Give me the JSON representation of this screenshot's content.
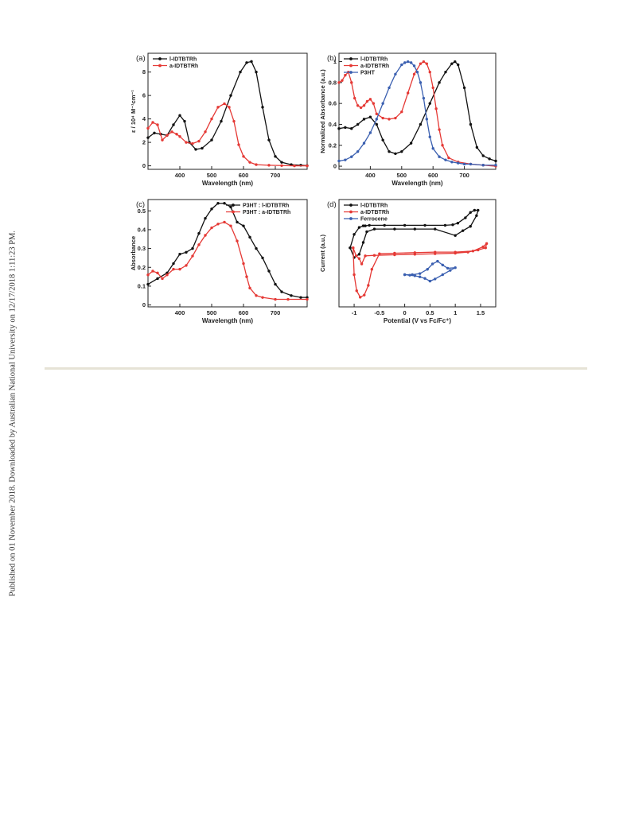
{
  "side_note": "Published on 01 November 2018. Downloaded by Australian National University on 12/17/2018 1:11:23 PM.",
  "colors": {
    "black": "#111111",
    "red": "#e53935",
    "blue": "#3a5fb0",
    "divider": "#e6e3d6"
  },
  "chart_data": [
    {
      "panel": "(a)",
      "type": "line",
      "xlabel": "Wavelength (nm)",
      "ylabel": "ε / 10⁴ M⁻¹cm⁻¹",
      "xlim": [
        300,
        800
      ],
      "ylim": [
        -0.3,
        9.6
      ],
      "xticks": [
        400,
        500,
        600,
        700
      ],
      "yticks": [
        0,
        2,
        4,
        6,
        8
      ],
      "legend_position": "top-left",
      "series": [
        {
          "name": "l-IDTBTRh",
          "color": "#111111",
          "x": [
            300,
            320,
            340,
            360,
            380,
            400,
            415,
            430,
            450,
            470,
            500,
            530,
            560,
            590,
            610,
            625,
            640,
            660,
            680,
            700,
            720,
            750,
            780,
            800
          ],
          "y": [
            2.4,
            2.8,
            2.7,
            2.6,
            3.5,
            4.3,
            3.8,
            2.0,
            1.4,
            1.5,
            2.2,
            3.8,
            6.0,
            8.0,
            8.8,
            8.9,
            8.0,
            5.0,
            2.2,
            0.8,
            0.3,
            0.1,
            0.05,
            0.02
          ]
        },
        {
          "name": "a-IDTBTRh",
          "color": "#e53935",
          "x": [
            300,
            315,
            330,
            345,
            360,
            375,
            390,
            400,
            420,
            440,
            460,
            480,
            500,
            520,
            540,
            555,
            570,
            585,
            600,
            620,
            640,
            680,
            720,
            760,
            800
          ],
          "y": [
            3.2,
            3.7,
            3.5,
            2.2,
            2.6,
            2.9,
            2.7,
            2.5,
            2.0,
            1.9,
            2.1,
            2.9,
            4.0,
            5.0,
            5.3,
            5.0,
            3.8,
            1.8,
            0.8,
            0.3,
            0.1,
            0.05,
            0.02,
            0.0,
            0.0
          ]
        }
      ]
    },
    {
      "panel": "(b)",
      "type": "line",
      "xlabel": "Wavelength (nm)",
      "ylabel": "Normalized Absorbance (a.u.)",
      "xlim": [
        300,
        800
      ],
      "ylim": [
        -0.03,
        1.08
      ],
      "xticks": [
        400,
        500,
        600,
        700
      ],
      "yticks": [
        0.0,
        0.2,
        0.4,
        0.6,
        0.8,
        1.0
      ],
      "legend_position": "top-left",
      "series": [
        {
          "name": "l-IDTBTRh",
          "color": "#111111",
          "x": [
            300,
            320,
            340,
            360,
            380,
            400,
            420,
            440,
            460,
            480,
            500,
            530,
            560,
            590,
            620,
            640,
            660,
            670,
            680,
            700,
            720,
            740,
            760,
            780,
            800
          ],
          "y": [
            0.36,
            0.37,
            0.36,
            0.4,
            0.45,
            0.47,
            0.4,
            0.25,
            0.14,
            0.12,
            0.14,
            0.22,
            0.4,
            0.6,
            0.8,
            0.9,
            0.98,
            1.0,
            0.97,
            0.75,
            0.4,
            0.18,
            0.1,
            0.07,
            0.05
          ]
        },
        {
          "name": "a-IDTBTRh",
          "color": "#e53935",
          "x": [
            300,
            310,
            320,
            330,
            340,
            350,
            360,
            370,
            380,
            390,
            400,
            410,
            420,
            440,
            460,
            480,
            500,
            520,
            540,
            560,
            570,
            580,
            590,
            600,
            610,
            620,
            630,
            650,
            680,
            720,
            760,
            800
          ],
          "y": [
            0.8,
            0.82,
            0.87,
            0.9,
            0.8,
            0.65,
            0.58,
            0.56,
            0.58,
            0.62,
            0.64,
            0.6,
            0.5,
            0.46,
            0.45,
            0.46,
            0.52,
            0.7,
            0.88,
            0.98,
            1.0,
            0.98,
            0.9,
            0.75,
            0.55,
            0.35,
            0.2,
            0.08,
            0.04,
            0.02,
            0.01,
            0.0
          ]
        },
        {
          "name": "P3HT",
          "color": "#3a5fb0",
          "x": [
            300,
            320,
            340,
            360,
            380,
            400,
            420,
            440,
            460,
            480,
            500,
            510,
            520,
            530,
            540,
            550,
            560,
            570,
            580,
            590,
            600,
            620,
            640,
            660,
            680,
            700,
            720,
            760,
            800
          ],
          "y": [
            0.05,
            0.06,
            0.09,
            0.14,
            0.22,
            0.32,
            0.45,
            0.6,
            0.75,
            0.88,
            0.97,
            0.99,
            1.0,
            0.99,
            0.96,
            0.9,
            0.8,
            0.65,
            0.45,
            0.28,
            0.17,
            0.09,
            0.06,
            0.04,
            0.03,
            0.02,
            0.02,
            0.01,
            0.01
          ]
        }
      ]
    },
    {
      "panel": "(c)",
      "type": "line",
      "xlabel": "Wavelength (nm)",
      "ylabel": "Absorbance",
      "xlim": [
        300,
        800
      ],
      "ylim": [
        -0.01,
        0.56
      ],
      "xticks": [
        400,
        500,
        600,
        700
      ],
      "yticks": [
        0.0,
        0.1,
        0.2,
        0.3,
        0.4,
        0.5
      ],
      "legend_position": "top-right",
      "series": [
        {
          "name": "P3HT : l-IDTBTRh",
          "color": "#111111",
          "x": [
            300,
            330,
            360,
            380,
            400,
            420,
            440,
            460,
            480,
            500,
            520,
            540,
            560,
            580,
            600,
            620,
            640,
            660,
            680,
            700,
            720,
            750,
            780,
            800
          ],
          "y": [
            0.11,
            0.14,
            0.17,
            0.22,
            0.27,
            0.28,
            0.3,
            0.38,
            0.46,
            0.51,
            0.54,
            0.54,
            0.52,
            0.44,
            0.42,
            0.36,
            0.3,
            0.25,
            0.18,
            0.11,
            0.07,
            0.05,
            0.04,
            0.04
          ]
        },
        {
          "name": "P3HT : a-IDTBTRh",
          "color": "#e53935",
          "x": [
            300,
            315,
            330,
            345,
            360,
            380,
            400,
            420,
            440,
            460,
            480,
            500,
            520,
            540,
            560,
            580,
            600,
            610,
            620,
            640,
            660,
            700,
            740,
            800
          ],
          "y": [
            0.16,
            0.18,
            0.17,
            0.14,
            0.16,
            0.19,
            0.19,
            0.21,
            0.26,
            0.32,
            0.37,
            0.41,
            0.43,
            0.44,
            0.42,
            0.34,
            0.22,
            0.15,
            0.09,
            0.05,
            0.04,
            0.03,
            0.03,
            0.03
          ]
        }
      ]
    },
    {
      "panel": "(d)",
      "type": "line",
      "xlabel": "Potential (V vs Fc/Fc⁺)",
      "ylabel": "Current (a.u.)",
      "xlim": [
        -1.3,
        1.8
      ],
      "ylim": [
        -1.0,
        1.0
      ],
      "xticks": [
        -1.0,
        -0.5,
        0.0,
        0.5,
        1.0,
        1.5
      ],
      "legend_position": "top-left",
      "series": [
        {
          "name": "l-IDTBTRh",
          "color": "#111111",
          "x": [
            -1.08,
            -1.0,
            -0.9,
            -0.82,
            -0.78,
            -0.7,
            -0.4,
            0.0,
            0.4,
            0.8,
            0.95,
            1.05,
            1.2,
            1.3,
            1.38,
            1.45,
            1.42,
            1.3,
            1.15,
            1.0,
            0.6,
            0.2,
            -0.2,
            -0.6,
            -0.75,
            -0.82,
            -0.9,
            -1.0,
            -1.08
          ],
          "y": [
            0.1,
            0.35,
            0.48,
            0.51,
            0.51,
            0.52,
            0.52,
            0.52,
            0.52,
            0.52,
            0.53,
            0.56,
            0.66,
            0.76,
            0.8,
            0.8,
            0.7,
            0.5,
            0.42,
            0.33,
            0.45,
            0.45,
            0.45,
            0.45,
            0.4,
            0.2,
            -0.02,
            -0.08,
            0.1
          ]
        },
        {
          "name": "a-IDTBTRh",
          "color": "#e53935",
          "x": [
            -1.02,
            -0.96,
            -0.9,
            -0.85,
            -0.78,
            -0.6,
            -0.2,
            0.2,
            0.6,
            1.0,
            1.25,
            1.45,
            1.6,
            1.62,
            1.55,
            1.35,
            1.0,
            0.6,
            0.2,
            -0.2,
            -0.5,
            -0.65,
            -0.72,
            -0.8,
            -0.88,
            -0.95,
            -1.0,
            -1.02
          ],
          "y": [
            0.1,
            -0.05,
            -0.1,
            -0.2,
            -0.05,
            -0.04,
            -0.03,
            -0.02,
            -0.01,
            0.0,
            0.02,
            0.06,
            0.1,
            0.18,
            0.12,
            0.04,
            0.02,
            0.02,
            0.01,
            0.0,
            -0.01,
            -0.3,
            -0.6,
            -0.78,
            -0.82,
            -0.7,
            -0.4,
            0.1
          ]
        },
        {
          "name": "Ferrocene",
          "color": "#3a5fb0",
          "x": [
            0.0,
            0.15,
            0.3,
            0.45,
            0.55,
            0.65,
            0.75,
            0.85,
            1.0,
            0.9,
            0.75,
            0.6,
            0.5,
            0.4,
            0.3,
            0.2,
            0.1,
            0.0
          ],
          "y": [
            -0.4,
            -0.4,
            -0.38,
            -0.3,
            -0.2,
            -0.15,
            -0.22,
            -0.28,
            -0.27,
            -0.32,
            -0.4,
            -0.48,
            -0.52,
            -0.47,
            -0.44,
            -0.42,
            -0.41,
            -0.4
          ]
        }
      ]
    }
  ]
}
